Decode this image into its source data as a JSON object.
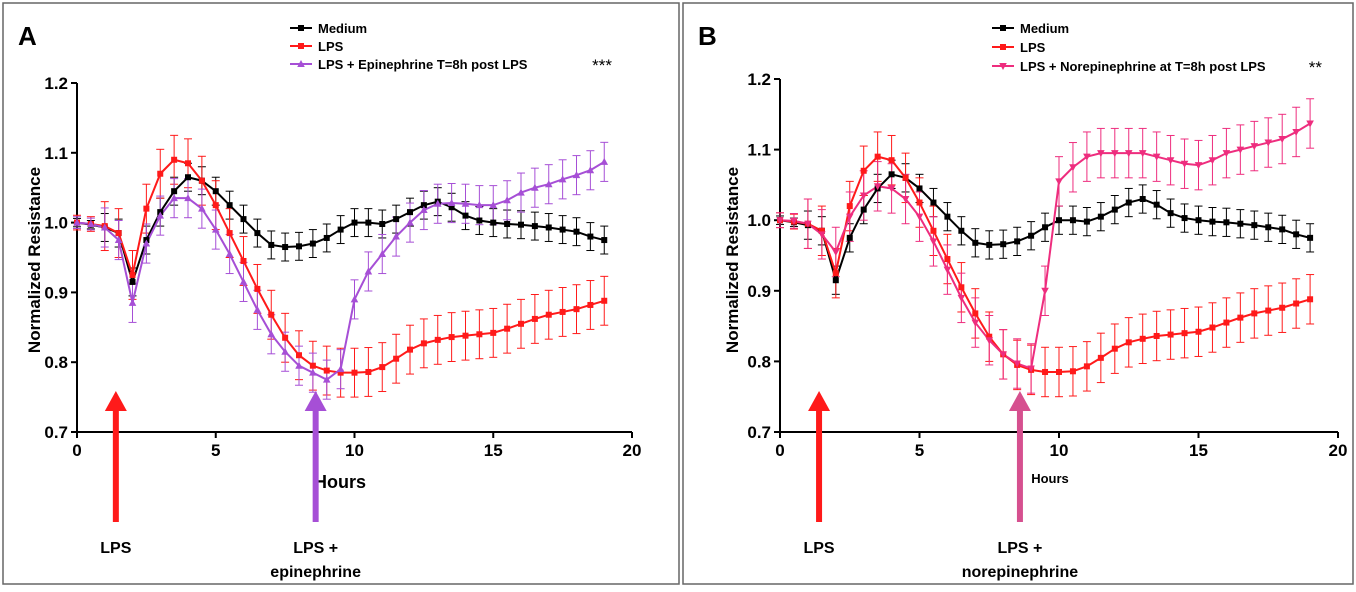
{
  "panels": [
    {
      "letter": "A",
      "ylabel": "Normalized Resistance",
      "xlabel": "Hours",
      "legend": [
        {
          "label": "Medium",
          "color": "#000000",
          "marker": "square"
        },
        {
          "label": "LPS",
          "color": "#ff1a1a",
          "marker": "square"
        },
        {
          "label": "LPS + Epinephrine T=8h post LPS",
          "color": "#a64fd6",
          "marker": "triangle-up"
        }
      ],
      "significance": "***",
      "annotations": [
        {
          "label": "LPS",
          "x": 1.4,
          "color": "#ff1a1a"
        },
        {
          "label": "LPS +",
          "label2": "epinephrine",
          "x": 8.6,
          "color": "#a64fd6"
        }
      ]
    },
    {
      "letter": "B",
      "ylabel": "Normalized Resistance",
      "xlabel": "Hours",
      "legend": [
        {
          "label": "Medium",
          "color": "#000000",
          "marker": "square"
        },
        {
          "label": "LPS",
          "color": "#ff1a1a",
          "marker": "square"
        },
        {
          "label": "LPS + Norepinephrine at T=8h post LPS",
          "color": "#ee2d7e",
          "marker": "triangle-down"
        }
      ],
      "significance": "**",
      "annotations": [
        {
          "label": "LPS",
          "x": 1.4,
          "color": "#ff1a1a"
        },
        {
          "label": "LPS +",
          "label2": "norepinephrine",
          "x": 8.6,
          "color": "#d6508f"
        }
      ]
    }
  ],
  "chart_data": [
    {
      "type": "line",
      "xlabel": "Hours",
      "ylabel": "Normalized Resistance",
      "xlim": [
        0,
        20
      ],
      "ylim": [
        0.7,
        1.2
      ],
      "xticks": [
        "0",
        "5",
        "10",
        "15",
        "20"
      ],
      "yticks": [
        "0.7",
        "0.8",
        "0.9",
        "1.0",
        "1.1",
        "1.2"
      ],
      "series": [
        {
          "name": "Medium",
          "color": "#000000",
          "x": [
            0,
            0.5,
            1,
            1.5,
            2,
            2.5,
            3,
            3.5,
            4,
            4.5,
            5,
            5.5,
            6,
            6.5,
            7,
            7.5,
            8,
            8.5,
            9,
            9.5,
            10,
            10.5,
            11,
            11.5,
            12,
            12.5,
            13,
            13.5,
            14,
            14.5,
            15,
            15.5,
            16,
            16.5,
            17,
            17.5,
            18,
            18.5,
            19
          ],
          "y": [
            1.0,
            0.997,
            0.993,
            0.985,
            0.915,
            0.975,
            1.015,
            1.045,
            1.065,
            1.06,
            1.045,
            1.025,
            1.005,
            0.985,
            0.968,
            0.965,
            0.966,
            0.97,
            0.978,
            0.99,
            1.0,
            1.0,
            0.998,
            1.005,
            1.015,
            1.025,
            1.03,
            1.022,
            1.01,
            1.003,
            1.0,
            0.998,
            0.997,
            0.995,
            0.993,
            0.99,
            0.987,
            0.98,
            0.975
          ],
          "error": 0.02
        },
        {
          "name": "LPS",
          "color": "#ff1a1a",
          "x": [
            0,
            0.5,
            1,
            1.5,
            2,
            2.5,
            3,
            3.5,
            4,
            4.5,
            5,
            5.5,
            6,
            6.5,
            7,
            7.5,
            8,
            8.5,
            9,
            9.5,
            10,
            10.5,
            11,
            11.5,
            12,
            12.5,
            13,
            13.5,
            14,
            14.5,
            15,
            15.5,
            16,
            16.5,
            17,
            17.5,
            18,
            18.5,
            19
          ],
          "y": [
            1.0,
            0.998,
            0.995,
            0.985,
            0.925,
            1.02,
            1.07,
            1.09,
            1.085,
            1.06,
            1.025,
            0.985,
            0.945,
            0.905,
            0.868,
            0.835,
            0.81,
            0.795,
            0.788,
            0.785,
            0.785,
            0.786,
            0.793,
            0.805,
            0.818,
            0.827,
            0.832,
            0.836,
            0.838,
            0.84,
            0.842,
            0.848,
            0.855,
            0.862,
            0.868,
            0.872,
            0.876,
            0.882,
            0.888
          ],
          "error": 0.035
        },
        {
          "name": "LPS + Epinephrine T=8h post LPS",
          "color": "#a64fd6",
          "x": [
            0,
            0.5,
            1,
            1.5,
            2,
            2.5,
            3,
            3.5,
            4,
            4.5,
            5,
            5.5,
            6,
            6.5,
            7,
            7.5,
            8,
            8.5,
            9,
            9.5,
            10,
            10.5,
            11,
            11.5,
            12,
            12.5,
            13,
            13.5,
            14,
            14.5,
            15,
            15.5,
            16,
            16.5,
            17,
            17.5,
            18,
            18.5,
            19
          ],
          "y": [
            1.0,
            0.998,
            0.993,
            0.975,
            0.885,
            0.97,
            1.01,
            1.035,
            1.035,
            1.02,
            0.99,
            0.955,
            0.915,
            0.875,
            0.84,
            0.815,
            0.795,
            0.785,
            0.775,
            0.79,
            0.89,
            0.93,
            0.955,
            0.98,
            1.0,
            1.018,
            1.027,
            1.028,
            1.027,
            1.025,
            1.025,
            1.032,
            1.043,
            1.05,
            1.055,
            1.062,
            1.068,
            1.075,
            1.087
          ],
          "error": 0.028
        }
      ]
    },
    {
      "type": "line",
      "xlabel": "Hours",
      "ylabel": "Normalized Resistance",
      "xlim": [
        0,
        20
      ],
      "ylim": [
        0.7,
        1.2
      ],
      "xticks": [
        "0",
        "5",
        "10",
        "15",
        "20"
      ],
      "yticks": [
        "0.7",
        "0.8",
        "0.9",
        "1.0",
        "1.1",
        "1.2"
      ],
      "series": [
        {
          "name": "Medium",
          "color": "#000000",
          "x": [
            0,
            0.5,
            1,
            1.5,
            2,
            2.5,
            3,
            3.5,
            4,
            4.5,
            5,
            5.5,
            6,
            6.5,
            7,
            7.5,
            8,
            8.5,
            9,
            9.5,
            10,
            10.5,
            11,
            11.5,
            12,
            12.5,
            13,
            13.5,
            14,
            14.5,
            15,
            15.5,
            16,
            16.5,
            17,
            17.5,
            18,
            18.5,
            19
          ],
          "y": [
            1.0,
            0.997,
            0.993,
            0.985,
            0.915,
            0.975,
            1.015,
            1.045,
            1.065,
            1.06,
            1.045,
            1.025,
            1.005,
            0.985,
            0.968,
            0.965,
            0.966,
            0.97,
            0.978,
            0.99,
            1.0,
            1.0,
            0.998,
            1.005,
            1.015,
            1.025,
            1.03,
            1.022,
            1.01,
            1.003,
            1.0,
            0.998,
            0.997,
            0.995,
            0.993,
            0.99,
            0.987,
            0.98,
            0.975
          ],
          "error": 0.02
        },
        {
          "name": "LPS",
          "color": "#ff1a1a",
          "x": [
            0,
            0.5,
            1,
            1.5,
            2,
            2.5,
            3,
            3.5,
            4,
            4.5,
            5,
            5.5,
            6,
            6.5,
            7,
            7.5,
            8,
            8.5,
            9,
            9.5,
            10,
            10.5,
            11,
            11.5,
            12,
            12.5,
            13,
            13.5,
            14,
            14.5,
            15,
            15.5,
            16,
            16.5,
            17,
            17.5,
            18,
            18.5,
            19
          ],
          "y": [
            1.0,
            0.998,
            0.995,
            0.985,
            0.925,
            1.02,
            1.07,
            1.09,
            1.085,
            1.06,
            1.025,
            0.985,
            0.945,
            0.905,
            0.868,
            0.835,
            0.81,
            0.795,
            0.788,
            0.785,
            0.785,
            0.786,
            0.793,
            0.805,
            0.818,
            0.827,
            0.832,
            0.836,
            0.838,
            0.84,
            0.842,
            0.848,
            0.855,
            0.862,
            0.868,
            0.872,
            0.876,
            0.882,
            0.888
          ],
          "error": 0.035
        },
        {
          "name": "LPS + Norepinephrine at T=8h post LPS",
          "color": "#ee2d7e",
          "x": [
            0,
            0.5,
            1,
            1.5,
            2,
            2.5,
            3,
            3.5,
            4,
            4.5,
            5,
            5.5,
            6,
            6.5,
            7,
            7.5,
            8,
            8.5,
            9,
            9.5,
            10,
            10.5,
            11,
            11.5,
            12,
            12.5,
            13,
            13.5,
            14,
            14.5,
            15,
            15.5,
            16,
            16.5,
            17,
            17.5,
            18,
            18.5,
            19
          ],
          "y": [
            1.0,
            0.999,
            0.995,
            0.98,
            0.955,
            1.005,
            1.035,
            1.048,
            1.045,
            1.03,
            1.005,
            0.97,
            0.93,
            0.89,
            0.855,
            0.83,
            0.81,
            0.797,
            0.79,
            0.9,
            1.055,
            1.075,
            1.09,
            1.095,
            1.095,
            1.095,
            1.095,
            1.09,
            1.085,
            1.08,
            1.078,
            1.085,
            1.095,
            1.1,
            1.105,
            1.11,
            1.115,
            1.125,
            1.137
          ],
          "error": 0.035
        }
      ]
    }
  ]
}
